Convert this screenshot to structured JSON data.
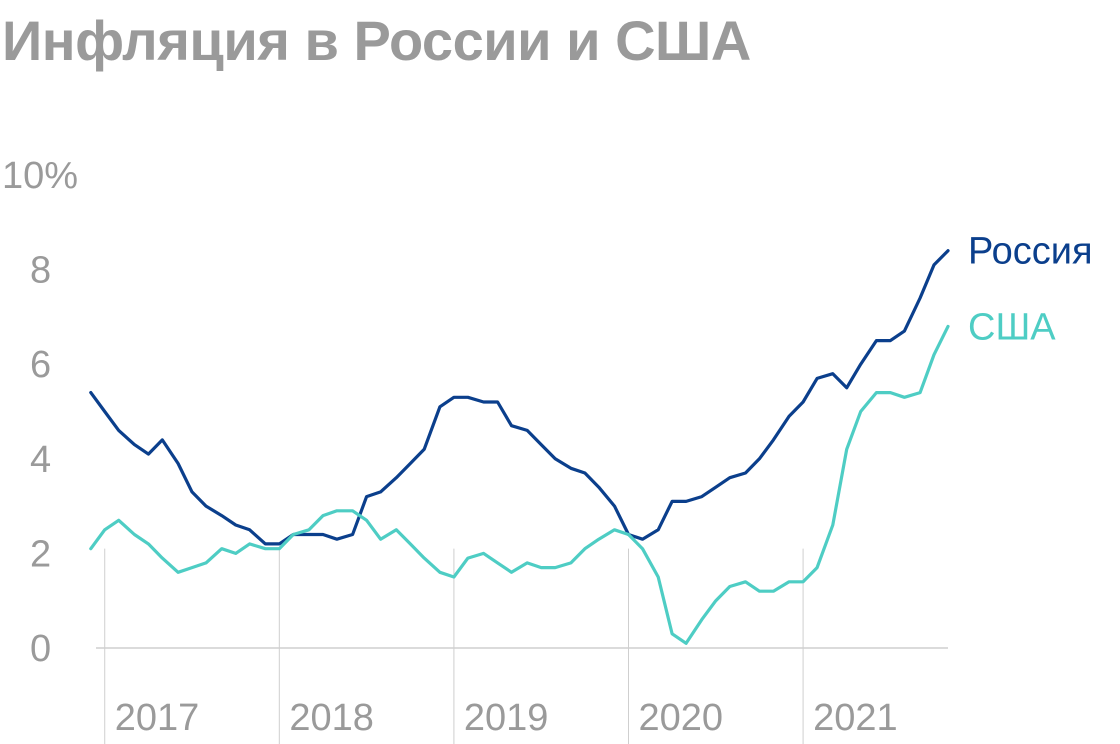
{
  "header": {
    "title": "Инфляция в России и США"
  },
  "chart_data": {
    "type": "line",
    "title": "Инфляция в России и США",
    "xlabel": "",
    "ylabel": "",
    "ylim": [
      0,
      10
    ],
    "xlim": [
      2016.95,
      2021.83
    ],
    "y_ticks": [
      {
        "value": 10,
        "label": "10%"
      },
      {
        "value": 8,
        "label": "8"
      },
      {
        "value": 6,
        "label": "6"
      },
      {
        "value": 4,
        "label": "4"
      },
      {
        "value": 2,
        "label": "2"
      },
      {
        "value": 0,
        "label": "0"
      }
    ],
    "x_ticks": [
      {
        "value": 2017,
        "label": "2017"
      },
      {
        "value": 2018,
        "label": "2018"
      },
      {
        "value": 2019,
        "label": "2019"
      },
      {
        "value": 2020,
        "label": "2020"
      },
      {
        "value": 2021,
        "label": "2021"
      }
    ],
    "grid": "vertical lines at year starts",
    "legend": "right, at line ends",
    "series": [
      {
        "name": "Россия",
        "color": "#0b3f8c",
        "points": [
          [
            2016.92,
            5.4
          ],
          [
            2017.0,
            5.0
          ],
          [
            2017.08,
            4.6
          ],
          [
            2017.17,
            4.3
          ],
          [
            2017.25,
            4.1
          ],
          [
            2017.33,
            4.4
          ],
          [
            2017.42,
            3.9
          ],
          [
            2017.5,
            3.3
          ],
          [
            2017.58,
            3.0
          ],
          [
            2017.67,
            2.8
          ],
          [
            2017.75,
            2.6
          ],
          [
            2017.83,
            2.5
          ],
          [
            2017.92,
            2.2
          ],
          [
            2018.0,
            2.2
          ],
          [
            2018.08,
            2.4
          ],
          [
            2018.17,
            2.4
          ],
          [
            2018.25,
            2.4
          ],
          [
            2018.33,
            2.3
          ],
          [
            2018.42,
            2.4
          ],
          [
            2018.5,
            3.2
          ],
          [
            2018.58,
            3.3
          ],
          [
            2018.67,
            3.6
          ],
          [
            2018.75,
            3.9
          ],
          [
            2018.83,
            4.2
          ],
          [
            2018.92,
            5.1
          ],
          [
            2019.0,
            5.3
          ],
          [
            2019.08,
            5.3
          ],
          [
            2019.17,
            5.2
          ],
          [
            2019.25,
            5.2
          ],
          [
            2019.33,
            4.7
          ],
          [
            2019.42,
            4.6
          ],
          [
            2019.5,
            4.3
          ],
          [
            2019.58,
            4.0
          ],
          [
            2019.67,
            3.8
          ],
          [
            2019.75,
            3.7
          ],
          [
            2019.83,
            3.4
          ],
          [
            2019.92,
            3.0
          ],
          [
            2020.0,
            2.4
          ],
          [
            2020.08,
            2.3
          ],
          [
            2020.17,
            2.5
          ],
          [
            2020.25,
            3.1
          ],
          [
            2020.33,
            3.1
          ],
          [
            2020.42,
            3.2
          ],
          [
            2020.5,
            3.4
          ],
          [
            2020.58,
            3.6
          ],
          [
            2020.67,
            3.7
          ],
          [
            2020.75,
            4.0
          ],
          [
            2020.83,
            4.4
          ],
          [
            2020.92,
            4.9
          ],
          [
            2021.0,
            5.2
          ],
          [
            2021.08,
            5.7
          ],
          [
            2021.17,
            5.8
          ],
          [
            2021.25,
            5.5
          ],
          [
            2021.33,
            6.0
          ],
          [
            2021.42,
            6.5
          ],
          [
            2021.5,
            6.5
          ],
          [
            2021.58,
            6.7
          ],
          [
            2021.67,
            7.4
          ],
          [
            2021.75,
            8.1
          ],
          [
            2021.83,
            8.4
          ]
        ]
      },
      {
        "name": "США",
        "color": "#4ecdc4",
        "points": [
          [
            2016.92,
            2.1
          ],
          [
            2017.0,
            2.5
          ],
          [
            2017.08,
            2.7
          ],
          [
            2017.17,
            2.4
          ],
          [
            2017.25,
            2.2
          ],
          [
            2017.33,
            1.9
          ],
          [
            2017.42,
            1.6
          ],
          [
            2017.5,
            1.7
          ],
          [
            2017.58,
            1.8
          ],
          [
            2017.67,
            2.1
          ],
          [
            2017.75,
            2.0
          ],
          [
            2017.83,
            2.2
          ],
          [
            2017.92,
            2.1
          ],
          [
            2018.0,
            2.1
          ],
          [
            2018.08,
            2.4
          ],
          [
            2018.17,
            2.5
          ],
          [
            2018.25,
            2.8
          ],
          [
            2018.33,
            2.9
          ],
          [
            2018.42,
            2.9
          ],
          [
            2018.5,
            2.7
          ],
          [
            2018.58,
            2.3
          ],
          [
            2018.67,
            2.5
          ],
          [
            2018.75,
            2.2
          ],
          [
            2018.83,
            1.9
          ],
          [
            2018.92,
            1.6
          ],
          [
            2019.0,
            1.5
          ],
          [
            2019.08,
            1.9
          ],
          [
            2019.17,
            2.0
          ],
          [
            2019.25,
            1.8
          ],
          [
            2019.33,
            1.6
          ],
          [
            2019.42,
            1.8
          ],
          [
            2019.5,
            1.7
          ],
          [
            2019.58,
            1.7
          ],
          [
            2019.67,
            1.8
          ],
          [
            2019.75,
            2.1
          ],
          [
            2019.83,
            2.3
          ],
          [
            2019.92,
            2.5
          ],
          [
            2020.0,
            2.4
          ],
          [
            2020.08,
            2.1
          ],
          [
            2020.17,
            1.5
          ],
          [
            2020.25,
            0.3
          ],
          [
            2020.33,
            0.1
          ],
          [
            2020.42,
            0.6
          ],
          [
            2020.5,
            1.0
          ],
          [
            2020.58,
            1.3
          ],
          [
            2020.67,
            1.4
          ],
          [
            2020.75,
            1.2
          ],
          [
            2020.83,
            1.2
          ],
          [
            2020.92,
            1.4
          ],
          [
            2021.0,
            1.4
          ],
          [
            2021.08,
            1.7
          ],
          [
            2021.17,
            2.6
          ],
          [
            2021.25,
            4.2
          ],
          [
            2021.33,
            5.0
          ],
          [
            2021.42,
            5.4
          ],
          [
            2021.5,
            5.4
          ],
          [
            2021.58,
            5.3
          ],
          [
            2021.67,
            5.4
          ],
          [
            2021.75,
            6.2
          ],
          [
            2021.83,
            6.8
          ]
        ]
      }
    ]
  }
}
